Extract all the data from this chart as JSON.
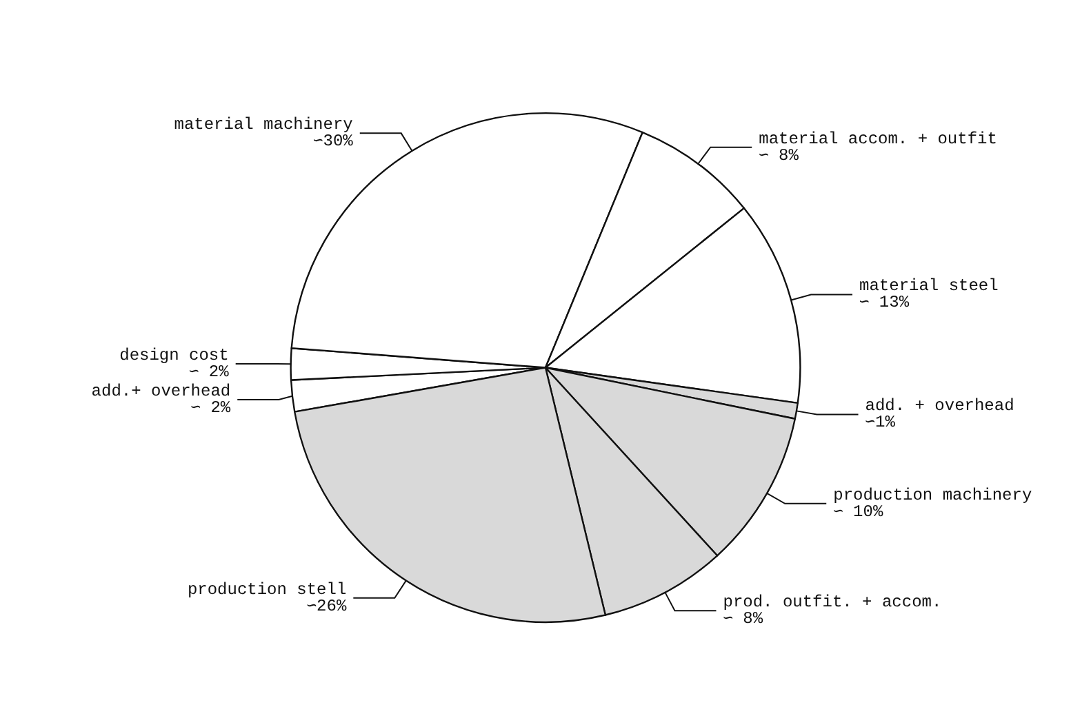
{
  "chart_data": {
    "type": "pie",
    "categories": [
      "add.+ overhead",
      "design cost",
      "material machinery",
      "material accom. + outfit",
      "material steel",
      "add. + overhead",
      "production machinery",
      "prod. outfit. + accom.",
      "production stell"
    ],
    "values": [
      2,
      2,
      30,
      8,
      13,
      1,
      10,
      8,
      26
    ],
    "value_labels": [
      "∽ 2%",
      "∽ 2%",
      "∽30%",
      "∽ 8%",
      "∽ 13%",
      "∽1%",
      "∽ 10%",
      "∽ 8%",
      "∽26%"
    ],
    "colors": [
      "#ffffff",
      "#ffffff",
      "#ffffff",
      "#ffffff",
      "#ffffff",
      "#d9d9d9",
      "#d9d9d9",
      "#d9d9d9",
      "#d9d9d9"
    ],
    "legend": false
  }
}
